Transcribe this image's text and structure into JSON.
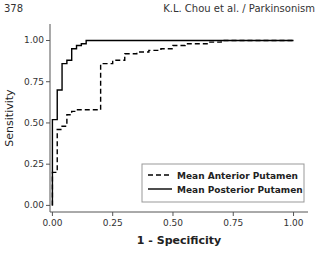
{
  "chart_data": {
    "type": "step",
    "title": "K.L. Chou et al. / Parkinsonism",
    "annotations": [
      "378"
    ],
    "x_label": "1 - Specificity",
    "y_label": "Sensitivity",
    "xlim": [
      -0.01,
      1.06
    ],
    "ylim": [
      -0.04,
      1.1
    ],
    "xticks": [
      {
        "value": 0.0,
        "label": "0.00"
      },
      0.25,
      {
        "value": 0.5,
        "label": "0.50"
      },
      0.75,
      {
        "value": 1.0,
        "label": "1.00"
      }
    ],
    "yticks": [
      {
        "value": 0.0,
        "label": "0.00"
      },
      0.25,
      {
        "value": 0.5,
        "label": "0.50"
      },
      0.75,
      {
        "value": 1.0,
        "label": "1.00"
      }
    ],
    "grid": false,
    "legend": "lower right",
    "series": [
      {
        "name": "Mean Posterior Putamen",
        "color": "#000000",
        "line_style": "solid",
        "x": [
          0.0,
          0.0,
          0.02,
          0.02,
          0.04,
          0.04,
          0.06,
          0.06,
          0.08,
          0.08,
          0.1,
          0.1,
          0.12,
          0.12,
          0.14,
          0.14,
          1.0
        ],
        "values": [
          0.0,
          0.52,
          0.52,
          0.7,
          0.7,
          0.86,
          0.86,
          0.88,
          0.88,
          0.95,
          0.95,
          0.97,
          0.97,
          0.98,
          0.98,
          1.0,
          1.0
        ]
      },
      {
        "name": "Mean Anterior Putamen",
        "color": "#000000",
        "line_style": "dashed",
        "x": [
          0.0,
          0.0,
          0.02,
          0.02,
          0.04,
          0.04,
          0.06,
          0.06,
          0.08,
          0.08,
          0.1,
          0.1,
          0.2,
          0.2,
          0.25,
          0.25,
          0.3,
          0.3,
          0.35,
          0.35,
          0.4,
          0.4,
          0.45,
          0.45,
          0.5,
          0.5,
          0.55,
          0.55,
          0.6,
          0.6,
          0.65,
          0.65,
          0.7,
          0.7,
          1.0
        ],
        "values": [
          0.0,
          0.2,
          0.2,
          0.46,
          0.46,
          0.48,
          0.48,
          0.55,
          0.55,
          0.57,
          0.57,
          0.58,
          0.58,
          0.86,
          0.86,
          0.88,
          0.88,
          0.92,
          0.92,
          0.93,
          0.93,
          0.94,
          0.94,
          0.95,
          0.95,
          0.97,
          0.97,
          0.98,
          0.98,
          0.98,
          0.98,
          0.99,
          0.99,
          1.0,
          1.0
        ]
      }
    ]
  }
}
